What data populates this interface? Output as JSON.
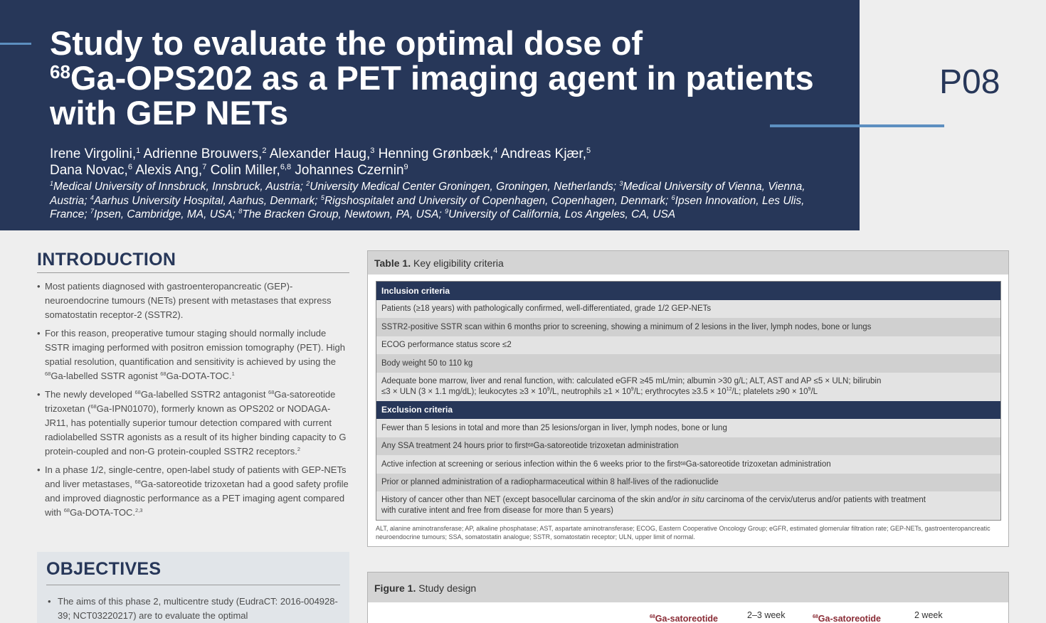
{
  "header": {
    "title_line1": "Study to evaluate the optimal dose of",
    "title_sup": "68",
    "title_line2": "Ga-OPS202 as a PET imaging agent in patients",
    "title_line3": "with GEP NETs",
    "poster_code": "P08"
  },
  "authors": [
    {
      "name": "Irene Virgolini,",
      "sup": "1"
    },
    {
      "name": "Adrienne Brouwers,",
      "sup": "2"
    },
    {
      "name": "Alexander Haug,",
      "sup": "3"
    },
    {
      "name": "Henning Grønbæk,",
      "sup": "4"
    },
    {
      "name": "Andreas Kjær,",
      "sup": "5"
    },
    {
      "name": "Dana Novac,",
      "sup": "6"
    },
    {
      "name": "Alexis Ang,",
      "sup": "7"
    },
    {
      "name": "Colin Miller,",
      "sup": "6,8"
    },
    {
      "name": "Johannes Czernin",
      "sup": "9"
    }
  ],
  "affiliations": [
    {
      "sup": "1",
      "text": "Medical University of Innsbruck, Innsbruck, Austria;"
    },
    {
      "sup": "2",
      "text": "University Medical Center Groningen, Groningen, Netherlands;"
    },
    {
      "sup": "3",
      "text": "Medical University of Vienna, Vienna, Austria;"
    },
    {
      "sup": "4",
      "text": "Aarhus University Hospital, Aarhus, Denmark;"
    },
    {
      "sup": "5",
      "text": "Rigshospitalet and University of Copenhagen, Copenhagen, Denmark;"
    },
    {
      "sup": "6",
      "text": "Ipsen Innovation, Les Ulis, France;"
    },
    {
      "sup": "7",
      "text": "Ipsen, Cambridge, MA, USA;"
    },
    {
      "sup": "8",
      "text": "The Bracken Group, Newtown, PA, USA;"
    },
    {
      "sup": "9",
      "text": "University of California, Los Angeles, CA, USA"
    }
  ],
  "introduction": {
    "heading": "INTRODUCTION",
    "bullet": "•",
    "b1": "Most patients diagnosed with gastroenteropancreatic (GEP)-neuroendocrine tumours (NETs) present with metastases that express somatostatin receptor-2 (SSTR2).",
    "b2_a": "For this reason, preoperative tumour staging should normally include SSTR imaging performed with positron emission tomography (PET). High spatial resolution, quantification and sensitivity is achieved by using the ",
    "b2_s1": "68",
    "b2_b": "Ga-labelled SSTR agonist ",
    "b2_s2": "68",
    "b2_c": "Ga-DOTA-TOC.",
    "b2_ref": "1",
    "b3_a": "The newly developed ",
    "b3_s1": "68",
    "b3_b": "Ga-labelled SSTR2 antagonist ",
    "b3_s2": "68",
    "b3_c": "Ga-satoreotide trizoxetan (",
    "b3_s3": "68",
    "b3_d": "Ga-IPN01070), formerly known as OPS202 or NODAGA-JR11, has potentially superior tumour detection compared with current radiolabelled SSTR agonists as a result of its higher binding capacity to G protein-coupled and non-G protein-coupled SSTR2 receptors.",
    "b3_ref": "2",
    "b4_a": "In a phase 1/2, single-centre, open-label study of patients with GEP-NETs and liver metastases, ",
    "b4_s1": "68",
    "b4_b": "Ga-satoreotide trizoxetan had a good safety profile and improved diagnostic performance as a PET imaging agent compared with ",
    "b4_s2": "68",
    "b4_c": "Ga-DOTA-TOC.",
    "b4_ref": "2,3"
  },
  "objectives": {
    "heading": "OBJECTIVES",
    "bullet": "•",
    "text": "The aims of this phase 2, multicentre study (EudraCT: 2016-004928-39; NCT03220217) are to evaluate the optimal"
  },
  "table1": {
    "label": "Table 1.",
    "title": "Key eligibility criteria",
    "inclusion_header": "Inclusion criteria",
    "inc1": "Patients (≥18 years) with pathologically confirmed, well-differentiated, grade 1/2 GEP-NETs",
    "inc2": "SSTR2-positive SSTR scan within 6 months prior to screening, showing a minimum of 2 lesions in the liver, lymph nodes, bone or lungs",
    "inc3": "ECOG performance status score ≤2",
    "inc4": "Body weight 50 to 110 kg",
    "inc5_line1": "Adequate bone marrow, liver and renal function, with: calculated eGFR ≥45 mL/min; albumin >30 g/L; ALT, AST and AP ≤5 × ULN; bilirubin",
    "inc5_a": "≤3 × ULN (3 × 1.1 mg/dL); leukocytes ≥3 × 10",
    "inc5_s1": "9",
    "inc5_b": "/L, neutrophils ≥1 × 10",
    "inc5_s2": "9",
    "inc5_c": "/L; erythrocytes ≥3.5 × 10",
    "inc5_s3": "12",
    "inc5_d": "/L; platelets ≥90 × 10",
    "inc5_s4": "9",
    "inc5_e": "/L",
    "exclusion_header": "Exclusion criteria",
    "exc1": "Fewer than 5 lesions in total and more than 25 lesions/organ in liver, lymph nodes, bone or lung",
    "exc2_a": "Any SSA treatment 24 hours prior to first ",
    "exc2_s": "68",
    "exc2_b": "Ga-satoreotide trizoxetan administration",
    "exc3_a": "Active infection at screening or serious infection within the 6 weeks prior to the first ",
    "exc3_s": "68",
    "exc3_b": "Ga-satoreotide trizoxetan administration",
    "exc4": "Prior or planned administration of a radiopharmaceutical within 8 half-lives of the radionuclide",
    "exc5_a": "History of cancer other than NET (except basocellular carcinoma of the skin and/or ",
    "exc5_i": "in situ",
    "exc5_b": " carcinoma of the cervix/uterus and/or patients with treatment",
    "exc5_line2": "with curative intent and free from disease for more than 5 years)",
    "footnote": "ALT, alanine aminotransferase; AP, alkaline phosphatase; AST, aspartate aminotransferase; ECOG, Eastern Cooperative Oncology Group; eGFR, estimated glomerular filtration rate; GEP-NETs, gastroenteropancreatic neuroendocrine tumours; SSA, somatostatin analogue; SSTR, somatostatin receptor; ULN, upper limit of normal."
  },
  "figure1": {
    "label": "Figure 1.",
    "title": "Study design",
    "agent_sup": "68",
    "agent1": "Ga-satoreotide",
    "gap1": "2–3 week",
    "agent2": "Ga-satoreotide",
    "gap2": "2 week"
  },
  "colors": {
    "navy": "#273759",
    "accent_blue": "#5d8fc0",
    "agent_red": "#8a2b35"
  }
}
